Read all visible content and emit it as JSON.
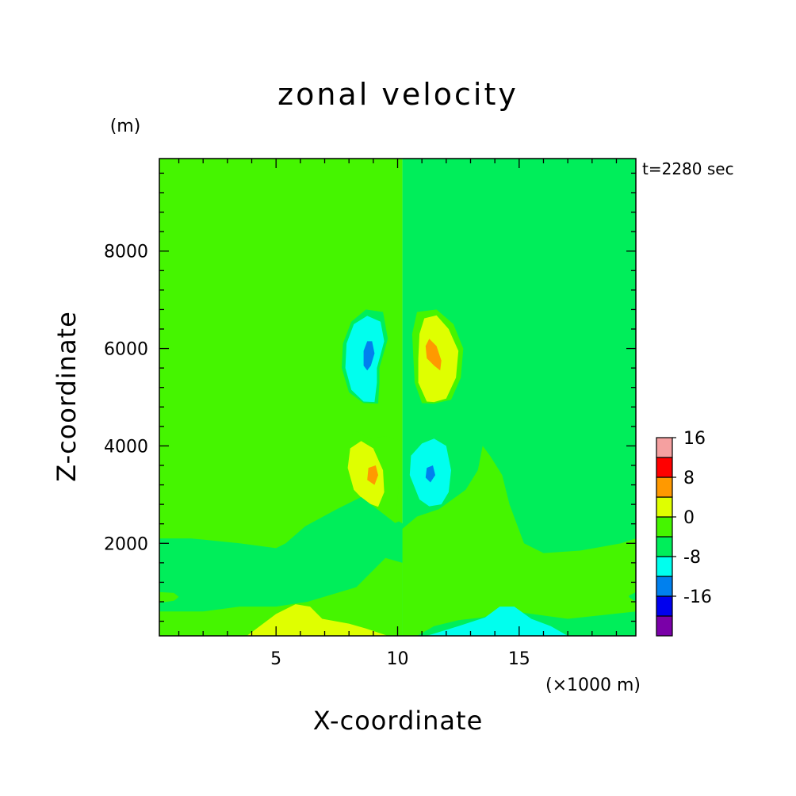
{
  "chart_data": {
    "type": "contour",
    "title": "zonal velocity",
    "y_unit": "(m)",
    "x_unit": "(×1000 m)",
    "time_label": "t=2280 sec",
    "xlabel": "X-coordinate",
    "ylabel": "Z-coordinate",
    "xlim": [
      0.2,
      19.8
    ],
    "ylim": [
      100,
      9900
    ],
    "x_ticks": [
      5,
      10,
      15
    ],
    "y_ticks": [
      2000,
      4000,
      6000,
      8000
    ],
    "colorbar": {
      "levels": [
        -24,
        -20,
        -16,
        -12,
        -8,
        -4,
        0,
        4,
        8,
        12,
        16,
        20,
        24
      ],
      "labels": [
        "-16",
        "-8",
        "0",
        "8",
        "16"
      ],
      "label_values": [
        -16,
        -8,
        0,
        8,
        16
      ],
      "colors": [
        "#7a00a8",
        "#0000ee",
        "#0080ee",
        "#00ffee",
        "#00ee5a",
        "#45f500",
        "#dfff00",
        "#ff9900",
        "#ff0000",
        "#f5a0a0"
      ]
    },
    "regions": [
      {
        "id": "bg-left",
        "band": "0..4",
        "color": "#45f500",
        "points": [
          [
            0.2,
            100
          ],
          [
            10.2,
            100
          ],
          [
            10.2,
            9900
          ],
          [
            0.2,
            9900
          ]
        ]
      },
      {
        "id": "bg-right",
        "band": "-4..0",
        "color": "#00ee5a",
        "points": [
          [
            10.2,
            100
          ],
          [
            19.8,
            100
          ],
          [
            19.8,
            9900
          ],
          [
            10.2,
            9900
          ]
        ]
      },
      {
        "id": "upper-left-ring",
        "band": "-4..0",
        "color": "#00ee5a",
        "points": [
          [
            9.2,
            4870
          ],
          [
            8.6,
            4880
          ],
          [
            8.0,
            5100
          ],
          [
            7.7,
            5600
          ],
          [
            7.75,
            6100
          ],
          [
            8.1,
            6550
          ],
          [
            8.7,
            6800
          ],
          [
            9.4,
            6750
          ],
          [
            9.6,
            6200
          ],
          [
            9.25,
            5600
          ],
          [
            9.25,
            5300
          ]
        ]
      },
      {
        "id": "upper-left-cyan",
        "band": "-8..-4",
        "color": "#00ffee",
        "points": [
          [
            9.05,
            4900
          ],
          [
            8.6,
            4910
          ],
          [
            8.1,
            5150
          ],
          [
            7.85,
            5600
          ],
          [
            7.9,
            6100
          ],
          [
            8.2,
            6500
          ],
          [
            8.75,
            6670
          ],
          [
            9.3,
            6550
          ],
          [
            9.45,
            6150
          ],
          [
            9.15,
            5600
          ],
          [
            9.15,
            5300
          ]
        ]
      },
      {
        "id": "upper-left-blue",
        "band": "-12..-8",
        "color": "#0080ee",
        "points": [
          [
            8.75,
            5550
          ],
          [
            8.6,
            5650
          ],
          [
            8.6,
            5950
          ],
          [
            8.75,
            6150
          ],
          [
            8.95,
            6150
          ],
          [
            9.05,
            5900
          ],
          [
            8.9,
            5650
          ]
        ]
      },
      {
        "id": "upper-right-ring",
        "band": "0..4",
        "color": "#45f500",
        "points": [
          [
            11.0,
            4880
          ],
          [
            10.7,
            5300
          ],
          [
            10.65,
            5800
          ],
          [
            10.6,
            6300
          ],
          [
            10.8,
            6750
          ],
          [
            11.6,
            6800
          ],
          [
            12.3,
            6500
          ],
          [
            12.7,
            6000
          ],
          [
            12.6,
            5400
          ],
          [
            12.2,
            4950
          ],
          [
            11.5,
            4870
          ]
        ]
      },
      {
        "id": "upper-right-yellow",
        "band": "4..8",
        "color": "#dfff00",
        "points": [
          [
            11.2,
            4910
          ],
          [
            10.85,
            5300
          ],
          [
            10.85,
            5800
          ],
          [
            10.9,
            6300
          ],
          [
            11.1,
            6620
          ],
          [
            11.6,
            6680
          ],
          [
            12.1,
            6400
          ],
          [
            12.5,
            5950
          ],
          [
            12.4,
            5400
          ],
          [
            12.0,
            4970
          ],
          [
            11.5,
            4900
          ]
        ]
      },
      {
        "id": "upper-right-orange",
        "band": "8..12",
        "color": "#ff9900",
        "points": [
          [
            11.2,
            5800
          ],
          [
            11.15,
            6050
          ],
          [
            11.3,
            6200
          ],
          [
            11.6,
            6050
          ],
          [
            11.8,
            5750
          ],
          [
            11.75,
            5550
          ],
          [
            11.5,
            5650
          ]
        ]
      },
      {
        "id": "lower-left-ring",
        "band": "0..4",
        "color": "#45f500",
        "points": [
          [
            9.9,
            2300
          ],
          [
            9.3,
            2750
          ],
          [
            8.8,
            2950
          ],
          [
            8.1,
            3150
          ],
          [
            7.7,
            3600
          ],
          [
            7.75,
            4050
          ],
          [
            8.3,
            4300
          ],
          [
            8.9,
            4150
          ],
          [
            9.5,
            4200
          ],
          [
            10.2,
            4100
          ]
        ]
      },
      {
        "id": "lower-left-yellow",
        "band": "4..8",
        "color": "#dfff00",
        "points": [
          [
            9.2,
            2750
          ],
          [
            8.7,
            2840
          ],
          [
            8.2,
            3100
          ],
          [
            7.95,
            3550
          ],
          [
            8.05,
            3950
          ],
          [
            8.5,
            4100
          ],
          [
            9.0,
            3950
          ],
          [
            9.4,
            3500
          ],
          [
            9.45,
            3050
          ]
        ]
      },
      {
        "id": "lower-left-orange",
        "band": "8..12",
        "color": "#ff9900",
        "points": [
          [
            9.05,
            3200
          ],
          [
            8.75,
            3300
          ],
          [
            8.8,
            3550
          ],
          [
            9.1,
            3600
          ],
          [
            9.2,
            3400
          ]
        ]
      },
      {
        "id": "lower-right-cyan",
        "band": "-8..-4",
        "color": "#00ffee",
        "points": [
          [
            11.3,
            2760
          ],
          [
            10.9,
            2900
          ],
          [
            10.5,
            3400
          ],
          [
            10.55,
            3800
          ],
          [
            11.0,
            4050
          ],
          [
            11.5,
            4150
          ],
          [
            12.0,
            4000
          ],
          [
            12.2,
            3500
          ],
          [
            12.1,
            3050
          ],
          [
            11.8,
            2800
          ]
        ]
      },
      {
        "id": "lower-right-blue",
        "band": "-12..-8",
        "color": "#0080ee",
        "points": [
          [
            11.35,
            3250
          ],
          [
            11.15,
            3350
          ],
          [
            11.2,
            3550
          ],
          [
            11.45,
            3600
          ],
          [
            11.55,
            3400
          ]
        ]
      },
      {
        "id": "center-bubble",
        "band": "-4..0",
        "color": "#00ee5a",
        "points": [
          [
            9.6,
            1700
          ],
          [
            9.35,
            1900
          ],
          [
            9.35,
            2150
          ],
          [
            9.6,
            2350
          ],
          [
            10.05,
            2450
          ],
          [
            10.6,
            2300
          ],
          [
            11.1,
            2100
          ],
          [
            11.2,
            1850
          ],
          [
            10.9,
            1650
          ],
          [
            10.3,
            1600
          ]
        ]
      },
      {
        "id": "left-low-band",
        "band": "-4..0",
        "color": "#00ee5a",
        "points": [
          [
            0.2,
            100
          ],
          [
            0.2,
            2100
          ],
          [
            1.5,
            2100
          ],
          [
            3.5,
            2000
          ],
          [
            5.0,
            1900
          ],
          [
            5.4,
            2000
          ],
          [
            6.2,
            2350
          ],
          [
            7.5,
            2700
          ],
          [
            8.5,
            2950
          ],
          [
            9.3,
            2650
          ],
          [
            10.2,
            2300
          ],
          [
            10.2,
            1600
          ],
          [
            9.5,
            1700
          ],
          [
            8.3,
            1100
          ],
          [
            6.3,
            800
          ],
          [
            5.0,
            700
          ],
          [
            3.5,
            700
          ],
          [
            2.0,
            600
          ],
          [
            0.2,
            600
          ]
        ]
      },
      {
        "id": "left-notch",
        "band": "0..4",
        "color": "#45f500",
        "points": [
          [
            0.2,
            780
          ],
          [
            0.8,
            820
          ],
          [
            1.0,
            900
          ],
          [
            0.8,
            980
          ],
          [
            0.2,
            1000
          ]
        ]
      },
      {
        "id": "left-bottom-yellow",
        "band": "4..8",
        "color": "#dfff00",
        "points": [
          [
            3.8,
            100
          ],
          [
            5.0,
            550
          ],
          [
            5.8,
            750
          ],
          [
            6.4,
            700
          ],
          [
            6.9,
            450
          ],
          [
            8.0,
            350
          ],
          [
            8.7,
            250
          ],
          [
            9.6,
            100
          ]
        ]
      },
      {
        "id": "right-low-band",
        "band": "0..4",
        "color": "#45f500",
        "points": [
          [
            10.2,
            100
          ],
          [
            10.2,
            2300
          ],
          [
            10.8,
            2550
          ],
          [
            11.7,
            2700
          ],
          [
            12.8,
            3100
          ],
          [
            13.3,
            3500
          ],
          [
            13.5,
            4000
          ],
          [
            13.8,
            3800
          ],
          [
            14.3,
            3400
          ],
          [
            14.6,
            2800
          ],
          [
            15.2,
            2000
          ],
          [
            16.0,
            1800
          ],
          [
            17.5,
            1850
          ],
          [
            19.2,
            2000
          ],
          [
            19.8,
            2100
          ],
          [
            19.8,
            1000
          ],
          [
            19.5,
            920
          ],
          [
            19.8,
            850
          ],
          [
            19.8,
            600
          ],
          [
            17.0,
            450
          ],
          [
            14.5,
            620
          ],
          [
            13.5,
            480
          ],
          [
            12.5,
            420
          ],
          [
            11.5,
            300
          ],
          [
            10.8,
            100
          ]
        ]
      },
      {
        "id": "right-bottom-cyan",
        "band": "-8..-4",
        "color": "#00ffee",
        "points": [
          [
            11.2,
            100
          ],
          [
            12.5,
            300
          ],
          [
            13.6,
            480
          ],
          [
            14.2,
            700
          ],
          [
            14.8,
            700
          ],
          [
            15.5,
            450
          ],
          [
            16.3,
            300
          ],
          [
            17.0,
            100
          ]
        ]
      },
      {
        "id": "right-notch",
        "band": "-4..0",
        "color": "#00ee5a",
        "points": [
          [
            19.8,
            800
          ],
          [
            19.5,
            900
          ],
          [
            19.8,
            1000
          ]
        ]
      }
    ]
  }
}
